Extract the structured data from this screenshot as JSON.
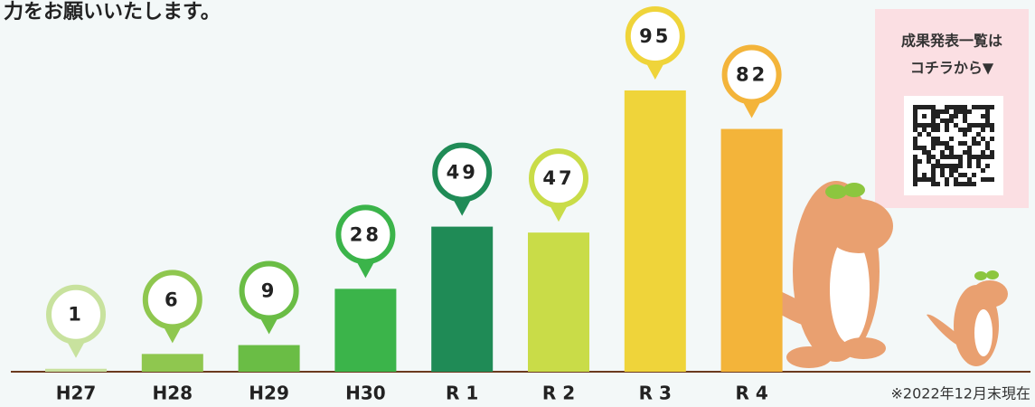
{
  "chart_data": {
    "type": "bar",
    "title": "力をお願いいたします。",
    "categories": [
      "H27",
      "H28",
      "H29",
      "H30",
      "R 1",
      "R 2",
      "R 3",
      "R 4"
    ],
    "values": [
      1,
      6,
      9,
      28,
      49,
      47,
      95,
      82
    ],
    "colors": [
      "#c8e29e",
      "#8fc74f",
      "#6abd45",
      "#3bb44a",
      "#1f8b56",
      "#c9dc48",
      "#efd43a",
      "#f3b43a"
    ],
    "link_box": [
      "成果発表一覧は",
      "コチラから▼"
    ],
    "note": "※2022年12月末現在"
  }
}
